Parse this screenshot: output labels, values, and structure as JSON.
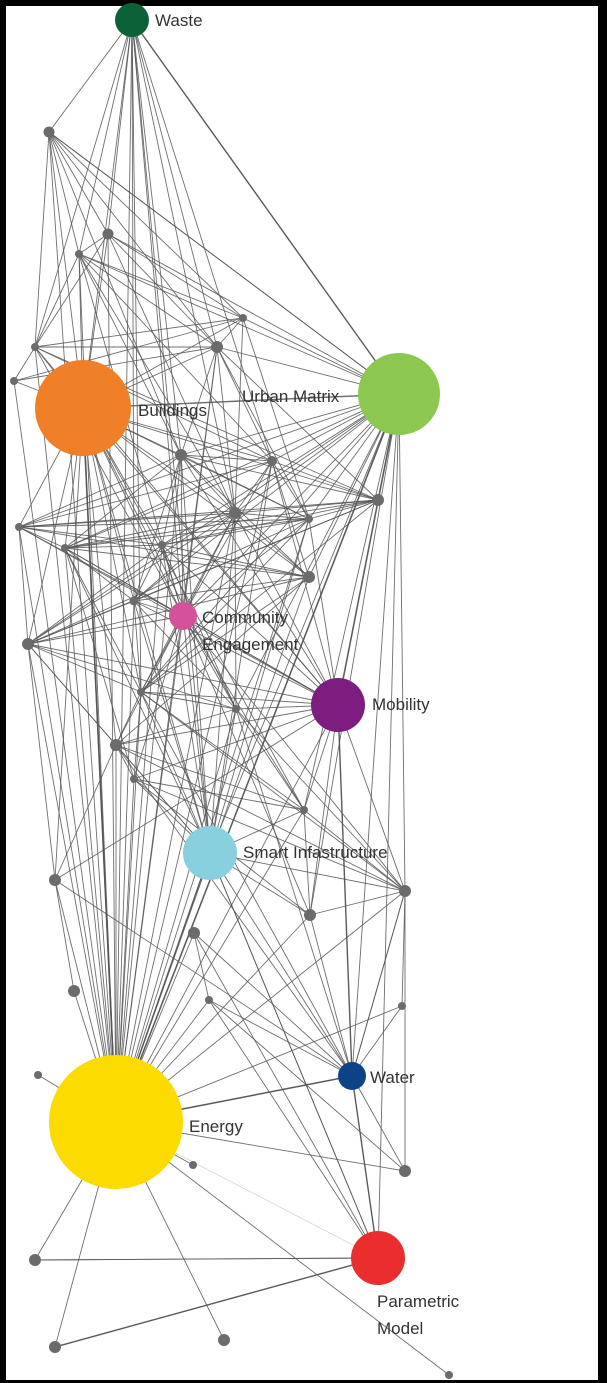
{
  "diagram": {
    "type": "network",
    "main_nodes": [
      {
        "id": "waste",
        "label": "Waste",
        "color": "#0d6138",
        "relative_size": 1.0
      },
      {
        "id": "buildings",
        "label": "Buildings",
        "color": "#f08028",
        "relative_size": 2.8
      },
      {
        "id": "urban-matrix",
        "label": "Urban Matrix",
        "color": "#8cc850",
        "relative_size": 2.4
      },
      {
        "id": "community-engagement",
        "label_lines": [
          "Community",
          "Engagement"
        ],
        "color": "#d6519b",
        "relative_size": 0.85
      },
      {
        "id": "mobility",
        "label": "Mobility",
        "color": "#7e1d80",
        "relative_size": 1.55
      },
      {
        "id": "smart-infrastructure",
        "label": "Smart Infastructure",
        "color": "#88d0de",
        "relative_size": 1.55
      },
      {
        "id": "water",
        "label": "Water",
        "color": "#0d4286",
        "relative_size": 0.8
      },
      {
        "id": "energy",
        "label": "Energy",
        "color": "#fcdb00",
        "relative_size": 3.9
      },
      {
        "id": "parametric-model",
        "label_lines": [
          "Parametric",
          "Model"
        ],
        "color": "#ea2d2d",
        "relative_size": 1.6
      }
    ],
    "minor_node_color": "#6b6b6b",
    "edge_color": "#555555"
  }
}
